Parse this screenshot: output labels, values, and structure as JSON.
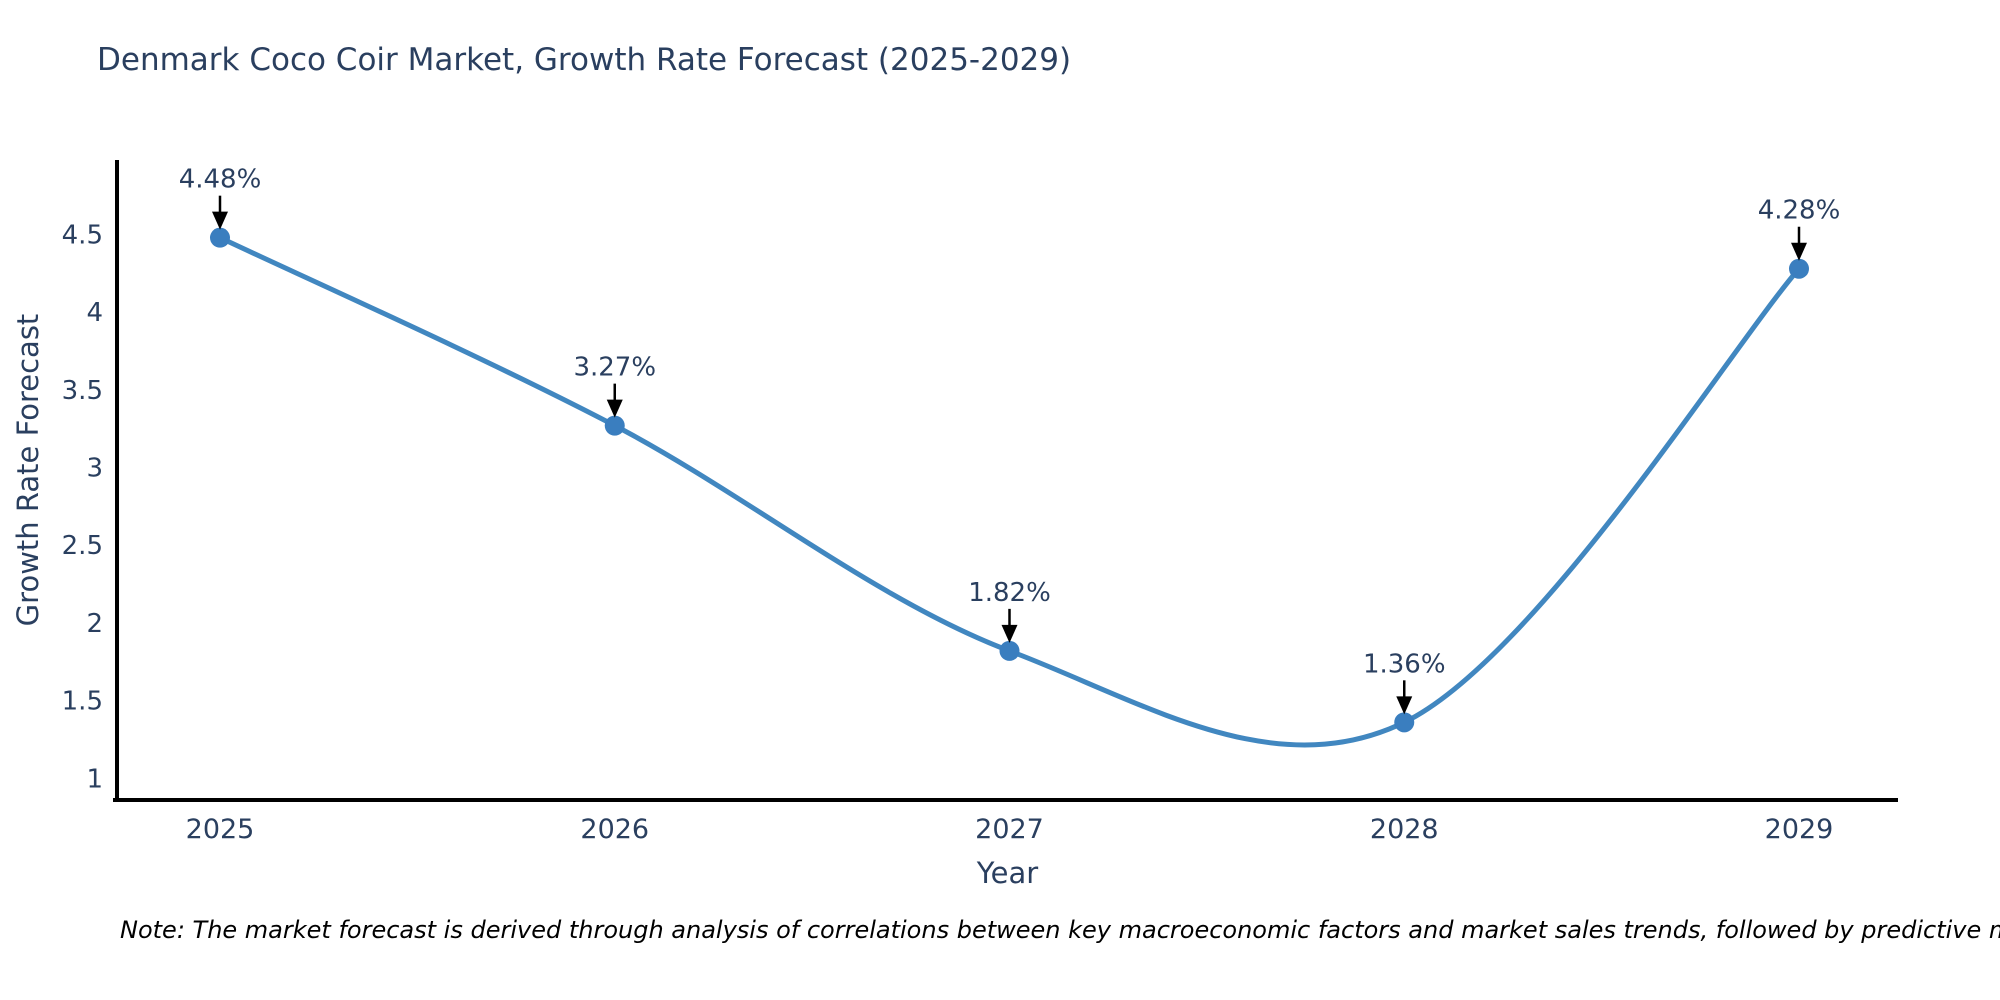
{
  "chart": {
    "title": "Denmark Coco Coir Market, Growth Rate Forecast (2025-2029)",
    "xlabel": "Year",
    "ylabel": "Growth Rate Forecast",
    "note": "Note: The market forecast is derived through analysis of correlations between key macroeconomic factors and market sales trends, followed by predictive modeling to project future sales"
  },
  "chart_data": {
    "type": "line",
    "title": "Denmark Coco Coir Market, Growth Rate Forecast (2025-2029)",
    "xlabel": "Year",
    "ylabel": "Growth Rate Forecast",
    "categories": [
      "2025",
      "2026",
      "2027",
      "2028",
      "2029"
    ],
    "values": [
      4.48,
      3.27,
      1.82,
      1.36,
      4.28
    ],
    "labels": [
      "4.48%",
      "3.27%",
      "1.82%",
      "1.36%",
      "4.28%"
    ],
    "yticks": [
      "1",
      "1.5",
      "2",
      "2.5",
      "3",
      "3.5",
      "4",
      "4.5"
    ],
    "ylim": [
      0.86,
      4.98
    ],
    "line_shape": "spline",
    "grid": false,
    "legend": "none",
    "colors": {
      "line": "#4187c0",
      "marker": "#3a7ebf",
      "axis": "#000000",
      "arrow": "#000000",
      "text": "#2a3f5f"
    }
  }
}
